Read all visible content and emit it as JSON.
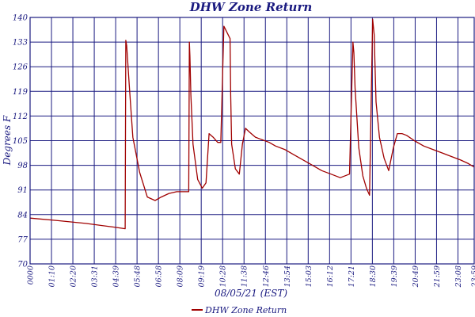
{
  "chart_data": {
    "type": "line",
    "title": "DHW Zone Return",
    "xlabel": "08/05/21 (EST)",
    "ylabel": "Degrees F",
    "ylim": [
      70,
      140
    ],
    "yticks": [
      70,
      77,
      84,
      91,
      98,
      105,
      112,
      119,
      126,
      133,
      140
    ],
    "xlim": [
      "00:00",
      "23:59"
    ],
    "xtick_labels": [
      "0000",
      "01:10",
      "02:20",
      "03:31",
      "04:39",
      "05:48",
      "06:58",
      "08:09",
      "09:19",
      "10:28",
      "11:38",
      "12:46",
      "13:54",
      "15:03",
      "16:12",
      "17:21",
      "18:30",
      "19:39",
      "20:49",
      "21:59",
      "23:08",
      "23:59"
    ],
    "grid": true,
    "legend_position": "bottom-center",
    "colors": {
      "series": "#a00000",
      "grid": "#1a1a80",
      "text": "#1a1a80",
      "background": "#ffffff"
    },
    "series": [
      {
        "name": "DHW Zone Return",
        "x": [
          "00:00",
          "01:30",
          "03:00",
          "04:28",
          "05:08",
          "05:10",
          "05:13",
          "05:22",
          "05:33",
          "05:55",
          "06:20",
          "06:45",
          "07:05",
          "07:30",
          "07:55",
          "08:08",
          "08:34",
          "08:36",
          "08:38",
          "08:41",
          "08:48",
          "09:03",
          "09:18",
          "09:30",
          "09:40",
          "09:53",
          "10:08",
          "10:18",
          "10:28",
          "10:48",
          "10:50",
          "10:53",
          "11:05",
          "11:18",
          "11:28",
          "11:38",
          "11:50",
          "12:10",
          "12:25",
          "12:40",
          "12:55",
          "13:15",
          "13:45",
          "14:15",
          "14:45",
          "15:15",
          "15:45",
          "16:15",
          "16:45",
          "17:15",
          "17:26",
          "17:29",
          "17:33",
          "17:45",
          "17:58",
          "18:10",
          "18:20",
          "18:30",
          "18:35",
          "18:37",
          "18:41",
          "18:52",
          "19:07",
          "19:22",
          "19:37",
          "19:50",
          "20:05",
          "20:20",
          "20:45",
          "21:15",
          "21:45",
          "22:15",
          "22:45",
          "23:15",
          "23:40",
          "23:59"
        ],
        "values": [
          83,
          82.3,
          81.5,
          80.5,
          80,
          133.5,
          132,
          120,
          106,
          96,
          89,
          88,
          89,
          90,
          90.5,
          90.5,
          90.5,
          133,
          129,
          118,
          104,
          94,
          91.5,
          93,
          107,
          106,
          104.5,
          104.5,
          137.5,
          134,
          118,
          104,
          97,
          95.5,
          104,
          108.5,
          107.5,
          106,
          105.5,
          105,
          104.5,
          103.5,
          102.5,
          101,
          99.5,
          98,
          96.5,
          95.5,
          94.5,
          95.5,
          133,
          130,
          120,
          103,
          95,
          91.5,
          89.5,
          139.5,
          135,
          128,
          116,
          106,
          100,
          96.5,
          103,
          107,
          107,
          106.5,
          105,
          103.5,
          102.5,
          101.5,
          100.5,
          99.5,
          98.5,
          97.5
        ]
      }
    ]
  }
}
